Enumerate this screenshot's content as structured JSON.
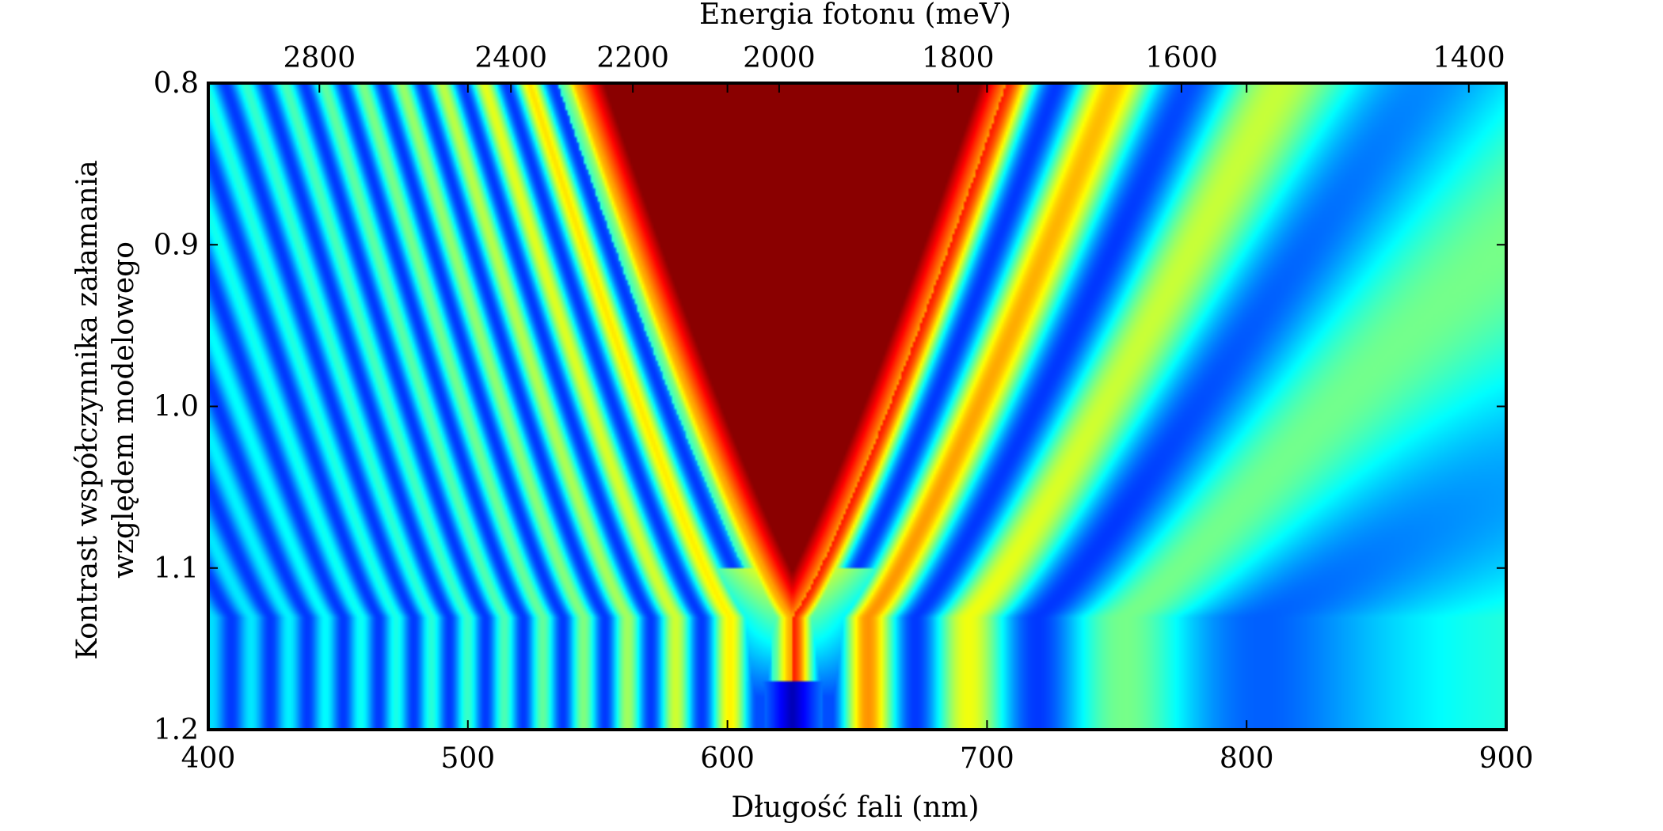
{
  "chart_data": {
    "type": "heatmap",
    "title": "",
    "colormap": "jet",
    "xlabel": "Długość fali (nm)",
    "x2label": "Energia fotonu (meV)",
    "ylabel_lines": [
      "Kontrast współczynnika załamania",
      "względem modelowego"
    ],
    "xlim": [
      400,
      900
    ],
    "ylim": [
      0.8,
      1.2
    ],
    "y_inverted": true,
    "x_ticks": [
      400,
      500,
      600,
      700,
      800,
      900
    ],
    "x_tick_labels": [
      "400",
      "500",
      "600",
      "700",
      "800",
      "900"
    ],
    "y_ticks": [
      0.8,
      0.9,
      1.0,
      1.1,
      1.2
    ],
    "y_tick_labels": [
      "0.8",
      "0.9",
      "1.0",
      "1.1",
      "1.2"
    ],
    "x2_ticks_meV": [
      2800,
      2400,
      2200,
      2000,
      1800,
      1600,
      1400
    ],
    "x2_tick_labels": [
      "2800",
      "2400",
      "2200",
      "2000",
      "1800",
      "1600",
      "1400"
    ],
    "x2_conversion_nm_meV": 1239842,
    "features": {
      "stopband_center_nm": 625,
      "stopband_edges_at_y_0_8_nm": [
        555,
        720
      ],
      "stopband_closes_near_y": 1.13,
      "dark_spot": {
        "x_nm": 625,
        "y": 1.2
      }
    }
  }
}
